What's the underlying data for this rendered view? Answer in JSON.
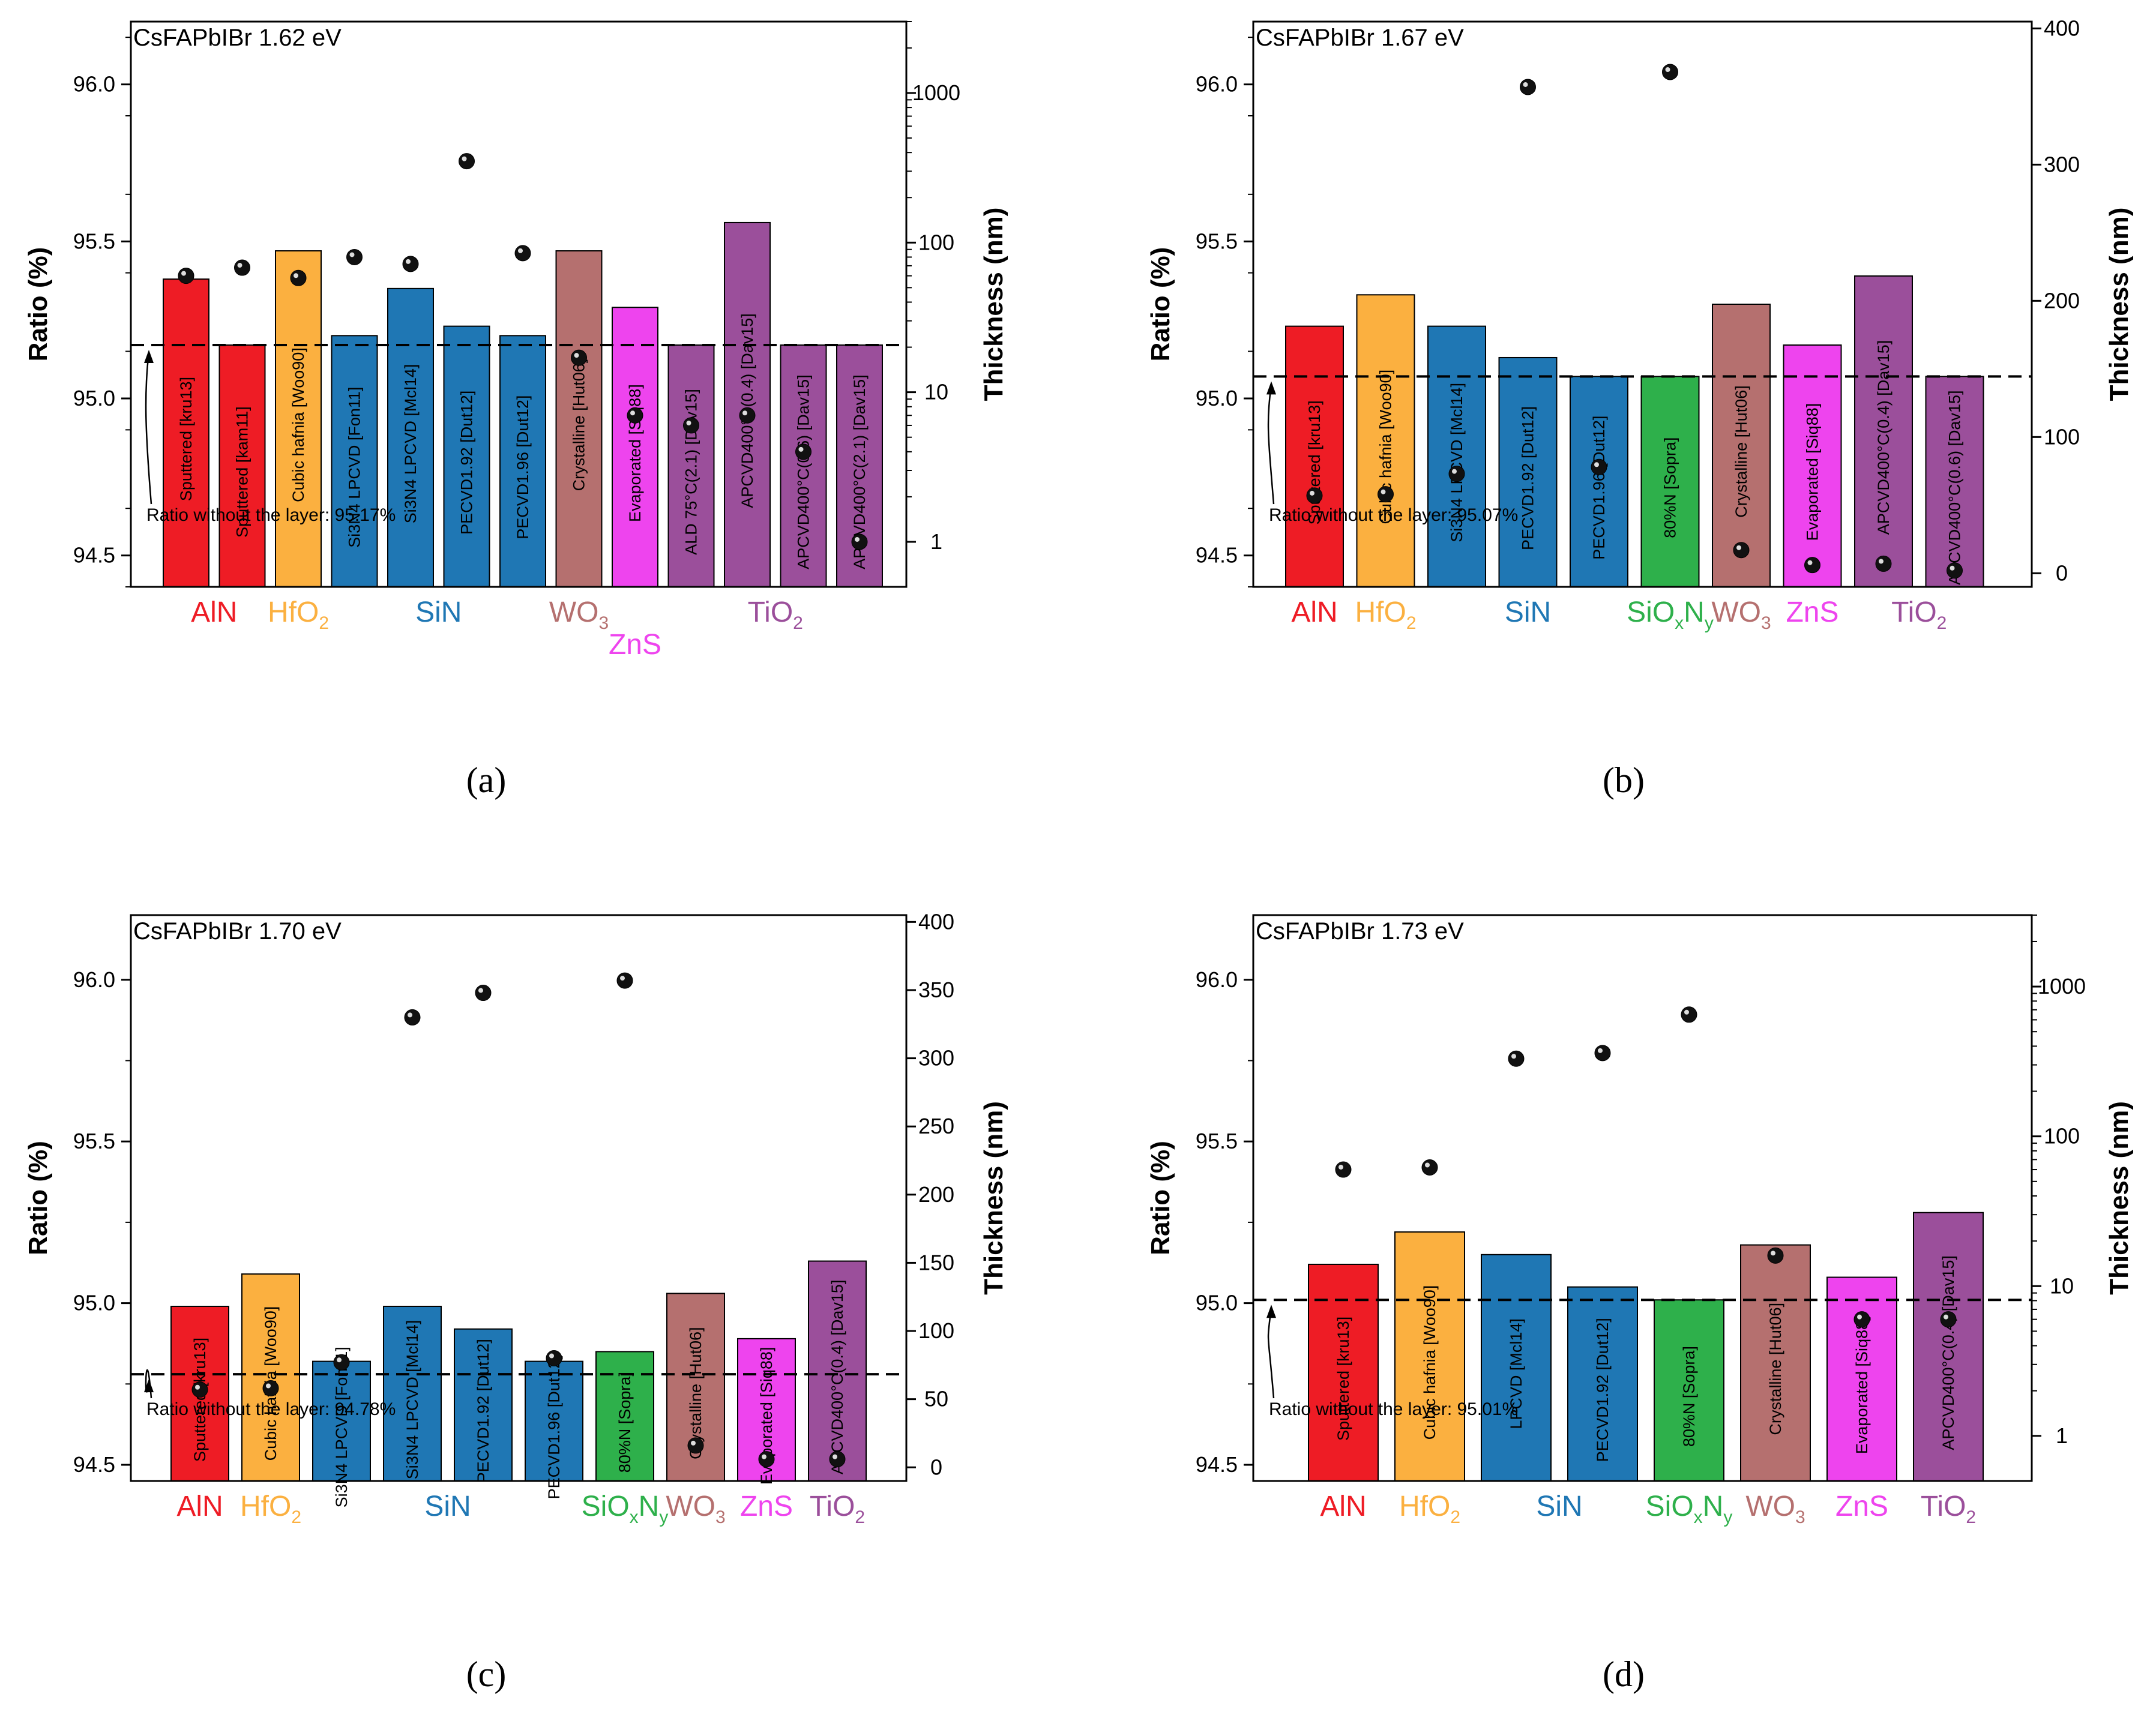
{
  "colors": {
    "AlN": "#ee1c25",
    "HfO2": "#fbb040",
    "SiN": "#1f77b4",
    "SiOxNy": "#2eb04b",
    "WO3": "#b5706f",
    "ZnS": "#ee44ee",
    "TiO2": "#9b4f9b",
    "axis": "#000000"
  },
  "chart_data": [
    {
      "type": "bar",
      "panel": "a",
      "caption": "(a)",
      "title": "CsFAPbIBr 1.62 eV",
      "ylabel": "Ratio (%)",
      "y2label": "Thickness (nm)",
      "ylim": [
        94.4,
        96.2
      ],
      "yticks": [
        "94.5",
        "95.0",
        "95.5",
        "96.0"
      ],
      "y2scale": "log",
      "y2lim": [
        0.5,
        3000
      ],
      "y2ticks": [
        "1",
        "10",
        "100",
        "1000"
      ],
      "baseline": 95.17,
      "baseline_label": "Ratio without the layer: 95.17%",
      "bars": [
        {
          "label": "Sputtered [kru13]",
          "group": "AlN",
          "ratio": 95.38,
          "thickness": 60
        },
        {
          "label": "Sputtered [kam11]",
          "group": "AlN",
          "ratio": 95.17,
          "thickness": 68
        },
        {
          "label": "Cubic hafnia [Woo90]",
          "group": "HfO2",
          "ratio": 95.47,
          "thickness": 58
        },
        {
          "label": "Si3N4 LPCVD [Fon11]",
          "group": "SiN",
          "ratio": 95.2,
          "thickness": 80
        },
        {
          "label": "Si3N4 LPCVD [Mcl14]",
          "group": "SiN",
          "ratio": 95.35,
          "thickness": 72
        },
        {
          "label": "PECVD1.92 [Dut12]",
          "group": "SiN",
          "ratio": 95.23,
          "thickness": 350
        },
        {
          "label": "PECVD1.96 [Dut12]",
          "group": "SiN",
          "ratio": 95.2,
          "thickness": 85
        },
        {
          "label": "Crystalline [Hut06]",
          "group": "WO3",
          "ratio": 95.47,
          "thickness": 17
        },
        {
          "label": "Evaporated [Siq88]",
          "group": "ZnS",
          "ratio": 95.29,
          "thickness": 7
        },
        {
          "label": "ALD 75°C(2.1) [Dav15]",
          "group": "TiO2",
          "ratio": 95.17,
          "thickness": 6
        },
        {
          "label": "APCVD400°C(0.4) [Dav15]",
          "group": "TiO2",
          "ratio": 95.56,
          "thickness": 7
        },
        {
          "label": "APCVD400°C(0.6) [Dav15]",
          "group": "TiO2",
          "ratio": 95.17,
          "thickness": 4
        },
        {
          "label": "APCVD400°C(2.1) [Dav15]",
          "group": "TiO2",
          "ratio": 95.17,
          "thickness": 1
        }
      ],
      "groups": [
        {
          "key": "AlN",
          "name": "AlN",
          "sub": "",
          "tail": ""
        },
        {
          "key": "HfO2",
          "name": "HfO",
          "sub": "2",
          "tail": ""
        },
        {
          "key": "SiN",
          "name": "SiN",
          "sub": "",
          "tail": ""
        },
        {
          "key": "WO3",
          "name": "WO",
          "sub": "3",
          "tail": ""
        },
        {
          "key": "ZnS",
          "name": "ZnS",
          "sub": "",
          "tail": ""
        },
        {
          "key": "TiO2",
          "name": "TiO",
          "sub": "2",
          "tail": ""
        }
      ]
    },
    {
      "type": "bar",
      "panel": "b",
      "caption": "(b)",
      "title": "CsFAPbIBr 1.67 eV",
      "ylabel": "Ratio (%)",
      "y2label": "Thickness (nm)",
      "ylim": [
        94.4,
        96.2
      ],
      "yticks": [
        "94.5",
        "95.0",
        "95.5",
        "96.0"
      ],
      "y2scale": "linear",
      "y2lim": [
        -10,
        405
      ],
      "y2ticks": [
        "0",
        "100",
        "200",
        "300",
        "400"
      ],
      "baseline": 95.07,
      "baseline_label": "Ratio without the layer: 95.07%",
      "bars": [
        {
          "label": "Sputtered [kru13]",
          "group": "AlN",
          "ratio": 95.23,
          "thickness": 57
        },
        {
          "label": "Cubic hafnia [Woo90]",
          "group": "HfO2",
          "ratio": 95.33,
          "thickness": 58
        },
        {
          "label": "Si3N4 LPCVD [Mcl14]",
          "group": "SiN",
          "ratio": 95.23,
          "thickness": 73
        },
        {
          "label": "PECVD1.92 [Dut12]",
          "group": "SiN",
          "ratio": 95.13,
          "thickness": 357
        },
        {
          "label": "PECVD1.96 [Dut12]",
          "group": "SiN",
          "ratio": 95.07,
          "thickness": 78
        },
        {
          "label": "80%N [Sopra]",
          "group": "SiOxNy",
          "ratio": 95.07,
          "thickness": 368
        },
        {
          "label": "Crystalline [Hut06]",
          "group": "WO3",
          "ratio": 95.3,
          "thickness": 17
        },
        {
          "label": "Evaporated [Siq88]",
          "group": "ZnS",
          "ratio": 95.17,
          "thickness": 6
        },
        {
          "label": "APCVD400°C(0.4) [Dav15]",
          "group": "TiO2",
          "ratio": 95.39,
          "thickness": 7
        },
        {
          "label": "APCVD400°C(0.6) [Dav15]",
          "group": "TiO2",
          "ratio": 95.07,
          "thickness": 2
        }
      ],
      "groups": [
        {
          "key": "AlN",
          "name": "AlN",
          "sub": "",
          "tail": ""
        },
        {
          "key": "HfO2",
          "name": "HfO",
          "sub": "2",
          "tail": ""
        },
        {
          "key": "SiN",
          "name": "SiN",
          "sub": "",
          "tail": ""
        },
        {
          "key": "SiOxNy",
          "name": "SiO",
          "sub": "x",
          "tail": "N",
          "sub2": "y"
        },
        {
          "key": "WO3",
          "name": "WO",
          "sub": "3",
          "tail": ""
        },
        {
          "key": "ZnS",
          "name": "ZnS",
          "sub": "",
          "tail": ""
        },
        {
          "key": "TiO2",
          "name": "TiO",
          "sub": "2",
          "tail": ""
        }
      ]
    },
    {
      "type": "bar",
      "panel": "c",
      "caption": "(c)",
      "title": "CsFAPbIBr 1.70 eV",
      "ylabel": "Ratio (%)",
      "y2label": "Thickness (nm)",
      "ylim": [
        94.45,
        96.2
      ],
      "yticks": [
        "94.5",
        "95.0",
        "95.5",
        "96.0"
      ],
      "y2scale": "linear",
      "y2lim": [
        -10,
        405
      ],
      "y2ticks": [
        "0",
        "50",
        "100",
        "150",
        "200",
        "250",
        "300",
        "350",
        "400"
      ],
      "baseline": 94.78,
      "baseline_label": "Ratio without the layer: 94.78%",
      "bars": [
        {
          "label": "Sputtered [kru13]",
          "group": "AlN",
          "ratio": 94.99,
          "thickness": 57
        },
        {
          "label": "Cubic hafnia [Woo90]",
          "group": "HfO2",
          "ratio": 95.09,
          "thickness": 58
        },
        {
          "label": "Si3N4 LPCVD [Fon11]",
          "group": "SiN",
          "ratio": 94.82,
          "thickness": 77
        },
        {
          "label": "Si3N4 LPCVD [Mcl14]",
          "group": "SiN",
          "ratio": 94.99,
          "thickness": 330
        },
        {
          "label": "PECVD1.92 [Dut12]",
          "group": "SiN",
          "ratio": 94.92,
          "thickness": 348
        },
        {
          "label": "PECVD1.96 [Dut12]",
          "group": "SiN",
          "ratio": 94.82,
          "thickness": 80
        },
        {
          "label": "80%N [Sopra]",
          "group": "SiOxNy",
          "ratio": 94.85,
          "thickness": 357
        },
        {
          "label": "Crystalline [Hut06]",
          "group": "WO3",
          "ratio": 95.03,
          "thickness": 16
        },
        {
          "label": "Evaporated [Siq88]",
          "group": "ZnS",
          "ratio": 94.89,
          "thickness": 6
        },
        {
          "label": "APCVD400°C(0.4) [Dav15]",
          "group": "TiO2",
          "ratio": 95.13,
          "thickness": 6
        }
      ],
      "groups": [
        {
          "key": "AlN",
          "name": "AlN",
          "sub": "",
          "tail": ""
        },
        {
          "key": "HfO2",
          "name": "HfO",
          "sub": "2",
          "tail": ""
        },
        {
          "key": "SiN",
          "name": "SiN",
          "sub": "",
          "tail": ""
        },
        {
          "key": "SiOxNy",
          "name": "SiO",
          "sub": "x",
          "tail": "N",
          "sub2": "y"
        },
        {
          "key": "WO3",
          "name": "WO",
          "sub": "3",
          "tail": ""
        },
        {
          "key": "ZnS",
          "name": "ZnS",
          "sub": "",
          "tail": ""
        },
        {
          "key": "TiO2",
          "name": "TiO",
          "sub": "2",
          "tail": ""
        }
      ]
    },
    {
      "type": "bar",
      "panel": "d",
      "caption": "(d)",
      "title": "CsFAPbIBr 1.73 eV",
      "ylabel": "Ratio (%)",
      "y2label": "Thickness (nm)",
      "ylim": [
        94.45,
        96.2
      ],
      "yticks": [
        "94.5",
        "95.0",
        "95.5",
        "96.0"
      ],
      "y2scale": "log",
      "y2lim": [
        0.5,
        3000
      ],
      "y2ticks": [
        "1",
        "10",
        "100",
        "1000"
      ],
      "baseline": 95.01,
      "baseline_label": "Ratio without the layer: 95.01%",
      "bars": [
        {
          "label": "Sputtered [kru13]",
          "group": "AlN",
          "ratio": 95.12,
          "thickness": 60
        },
        {
          "label": "Cubic hafnia [Woo90]",
          "group": "HfO2",
          "ratio": 95.22,
          "thickness": 62
        },
        {
          "label": "LPCVD [Mcl14]",
          "group": "SiN",
          "ratio": 95.15,
          "thickness": 330
        },
        {
          "label": "PECVD1.92 [Dut12]",
          "group": "SiN",
          "ratio": 95.05,
          "thickness": 360
        },
        {
          "label": "80%N [Sopra]",
          "group": "SiOxNy",
          "ratio": 95.01,
          "thickness": 650
        },
        {
          "label": "Crystalline [Hut06]",
          "group": "WO3",
          "ratio": 95.18,
          "thickness": 16
        },
        {
          "label": "Evaporated [Siq88]",
          "group": "ZnS",
          "ratio": 95.08,
          "thickness": 6
        },
        {
          "label": "APCVD400°C(0.4) [Dav15]",
          "group": "TiO2",
          "ratio": 95.28,
          "thickness": 6
        }
      ],
      "groups": [
        {
          "key": "AlN",
          "name": "AlN",
          "sub": "",
          "tail": ""
        },
        {
          "key": "HfO2",
          "name": "HfO",
          "sub": "2",
          "tail": ""
        },
        {
          "key": "SiN",
          "name": "SiN",
          "sub": "",
          "tail": ""
        },
        {
          "key": "SiOxNy",
          "name": "SiO",
          "sub": "x",
          "tail": "N",
          "sub2": "y"
        },
        {
          "key": "WO3",
          "name": "WO",
          "sub": "3",
          "tail": ""
        },
        {
          "key": "ZnS",
          "name": "ZnS",
          "sub": "",
          "tail": ""
        },
        {
          "key": "TiO2",
          "name": "TiO",
          "sub": "2",
          "tail": ""
        }
      ]
    }
  ]
}
